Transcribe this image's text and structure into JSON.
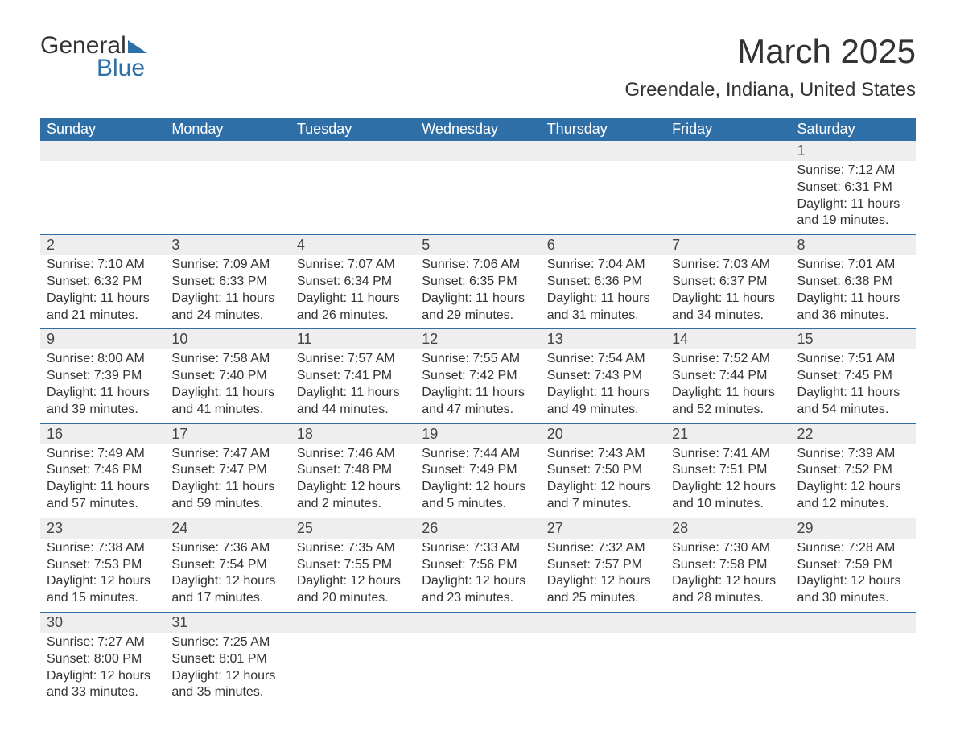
{
  "logo": {
    "text1": "General",
    "text2": "Blue"
  },
  "title": "March 2025",
  "location": "Greendale, Indiana, United States",
  "colors": {
    "header_bg": "#2f6fa8",
    "header_text": "#ffffff",
    "date_row_bg": "#eeeeee",
    "text": "#333333",
    "border": "#2f6fa8"
  },
  "day_headers": [
    "Sunday",
    "Monday",
    "Tuesday",
    "Wednesday",
    "Thursday",
    "Friday",
    "Saturday"
  ],
  "weeks": [
    [
      null,
      null,
      null,
      null,
      null,
      null,
      {
        "d": "1",
        "sr": "Sunrise: 7:12 AM",
        "ss": "Sunset: 6:31 PM",
        "dl1": "Daylight: 11 hours",
        "dl2": "and 19 minutes."
      }
    ],
    [
      {
        "d": "2",
        "sr": "Sunrise: 7:10 AM",
        "ss": "Sunset: 6:32 PM",
        "dl1": "Daylight: 11 hours",
        "dl2": "and 21 minutes."
      },
      {
        "d": "3",
        "sr": "Sunrise: 7:09 AM",
        "ss": "Sunset: 6:33 PM",
        "dl1": "Daylight: 11 hours",
        "dl2": "and 24 minutes."
      },
      {
        "d": "4",
        "sr": "Sunrise: 7:07 AM",
        "ss": "Sunset: 6:34 PM",
        "dl1": "Daylight: 11 hours",
        "dl2": "and 26 minutes."
      },
      {
        "d": "5",
        "sr": "Sunrise: 7:06 AM",
        "ss": "Sunset: 6:35 PM",
        "dl1": "Daylight: 11 hours",
        "dl2": "and 29 minutes."
      },
      {
        "d": "6",
        "sr": "Sunrise: 7:04 AM",
        "ss": "Sunset: 6:36 PM",
        "dl1": "Daylight: 11 hours",
        "dl2": "and 31 minutes."
      },
      {
        "d": "7",
        "sr": "Sunrise: 7:03 AM",
        "ss": "Sunset: 6:37 PM",
        "dl1": "Daylight: 11 hours",
        "dl2": "and 34 minutes."
      },
      {
        "d": "8",
        "sr": "Sunrise: 7:01 AM",
        "ss": "Sunset: 6:38 PM",
        "dl1": "Daylight: 11 hours",
        "dl2": "and 36 minutes."
      }
    ],
    [
      {
        "d": "9",
        "sr": "Sunrise: 8:00 AM",
        "ss": "Sunset: 7:39 PM",
        "dl1": "Daylight: 11 hours",
        "dl2": "and 39 minutes."
      },
      {
        "d": "10",
        "sr": "Sunrise: 7:58 AM",
        "ss": "Sunset: 7:40 PM",
        "dl1": "Daylight: 11 hours",
        "dl2": "and 41 minutes."
      },
      {
        "d": "11",
        "sr": "Sunrise: 7:57 AM",
        "ss": "Sunset: 7:41 PM",
        "dl1": "Daylight: 11 hours",
        "dl2": "and 44 minutes."
      },
      {
        "d": "12",
        "sr": "Sunrise: 7:55 AM",
        "ss": "Sunset: 7:42 PM",
        "dl1": "Daylight: 11 hours",
        "dl2": "and 47 minutes."
      },
      {
        "d": "13",
        "sr": "Sunrise: 7:54 AM",
        "ss": "Sunset: 7:43 PM",
        "dl1": "Daylight: 11 hours",
        "dl2": "and 49 minutes."
      },
      {
        "d": "14",
        "sr": "Sunrise: 7:52 AM",
        "ss": "Sunset: 7:44 PM",
        "dl1": "Daylight: 11 hours",
        "dl2": "and 52 minutes."
      },
      {
        "d": "15",
        "sr": "Sunrise: 7:51 AM",
        "ss": "Sunset: 7:45 PM",
        "dl1": "Daylight: 11 hours",
        "dl2": "and 54 minutes."
      }
    ],
    [
      {
        "d": "16",
        "sr": "Sunrise: 7:49 AM",
        "ss": "Sunset: 7:46 PM",
        "dl1": "Daylight: 11 hours",
        "dl2": "and 57 minutes."
      },
      {
        "d": "17",
        "sr": "Sunrise: 7:47 AM",
        "ss": "Sunset: 7:47 PM",
        "dl1": "Daylight: 11 hours",
        "dl2": "and 59 minutes."
      },
      {
        "d": "18",
        "sr": "Sunrise: 7:46 AM",
        "ss": "Sunset: 7:48 PM",
        "dl1": "Daylight: 12 hours",
        "dl2": "and 2 minutes."
      },
      {
        "d": "19",
        "sr": "Sunrise: 7:44 AM",
        "ss": "Sunset: 7:49 PM",
        "dl1": "Daylight: 12 hours",
        "dl2": "and 5 minutes."
      },
      {
        "d": "20",
        "sr": "Sunrise: 7:43 AM",
        "ss": "Sunset: 7:50 PM",
        "dl1": "Daylight: 12 hours",
        "dl2": "and 7 minutes."
      },
      {
        "d": "21",
        "sr": "Sunrise: 7:41 AM",
        "ss": "Sunset: 7:51 PM",
        "dl1": "Daylight: 12 hours",
        "dl2": "and 10 minutes."
      },
      {
        "d": "22",
        "sr": "Sunrise: 7:39 AM",
        "ss": "Sunset: 7:52 PM",
        "dl1": "Daylight: 12 hours",
        "dl2": "and 12 minutes."
      }
    ],
    [
      {
        "d": "23",
        "sr": "Sunrise: 7:38 AM",
        "ss": "Sunset: 7:53 PM",
        "dl1": "Daylight: 12 hours",
        "dl2": "and 15 minutes."
      },
      {
        "d": "24",
        "sr": "Sunrise: 7:36 AM",
        "ss": "Sunset: 7:54 PM",
        "dl1": "Daylight: 12 hours",
        "dl2": "and 17 minutes."
      },
      {
        "d": "25",
        "sr": "Sunrise: 7:35 AM",
        "ss": "Sunset: 7:55 PM",
        "dl1": "Daylight: 12 hours",
        "dl2": "and 20 minutes."
      },
      {
        "d": "26",
        "sr": "Sunrise: 7:33 AM",
        "ss": "Sunset: 7:56 PM",
        "dl1": "Daylight: 12 hours",
        "dl2": "and 23 minutes."
      },
      {
        "d": "27",
        "sr": "Sunrise: 7:32 AM",
        "ss": "Sunset: 7:57 PM",
        "dl1": "Daylight: 12 hours",
        "dl2": "and 25 minutes."
      },
      {
        "d": "28",
        "sr": "Sunrise: 7:30 AM",
        "ss": "Sunset: 7:58 PM",
        "dl1": "Daylight: 12 hours",
        "dl2": "and 28 minutes."
      },
      {
        "d": "29",
        "sr": "Sunrise: 7:28 AM",
        "ss": "Sunset: 7:59 PM",
        "dl1": "Daylight: 12 hours",
        "dl2": "and 30 minutes."
      }
    ],
    [
      {
        "d": "30",
        "sr": "Sunrise: 7:27 AM",
        "ss": "Sunset: 8:00 PM",
        "dl1": "Daylight: 12 hours",
        "dl2": "and 33 minutes."
      },
      {
        "d": "31",
        "sr": "Sunrise: 7:25 AM",
        "ss": "Sunset: 8:01 PM",
        "dl1": "Daylight: 12 hours",
        "dl2": "and 35 minutes."
      },
      null,
      null,
      null,
      null,
      null
    ]
  ]
}
